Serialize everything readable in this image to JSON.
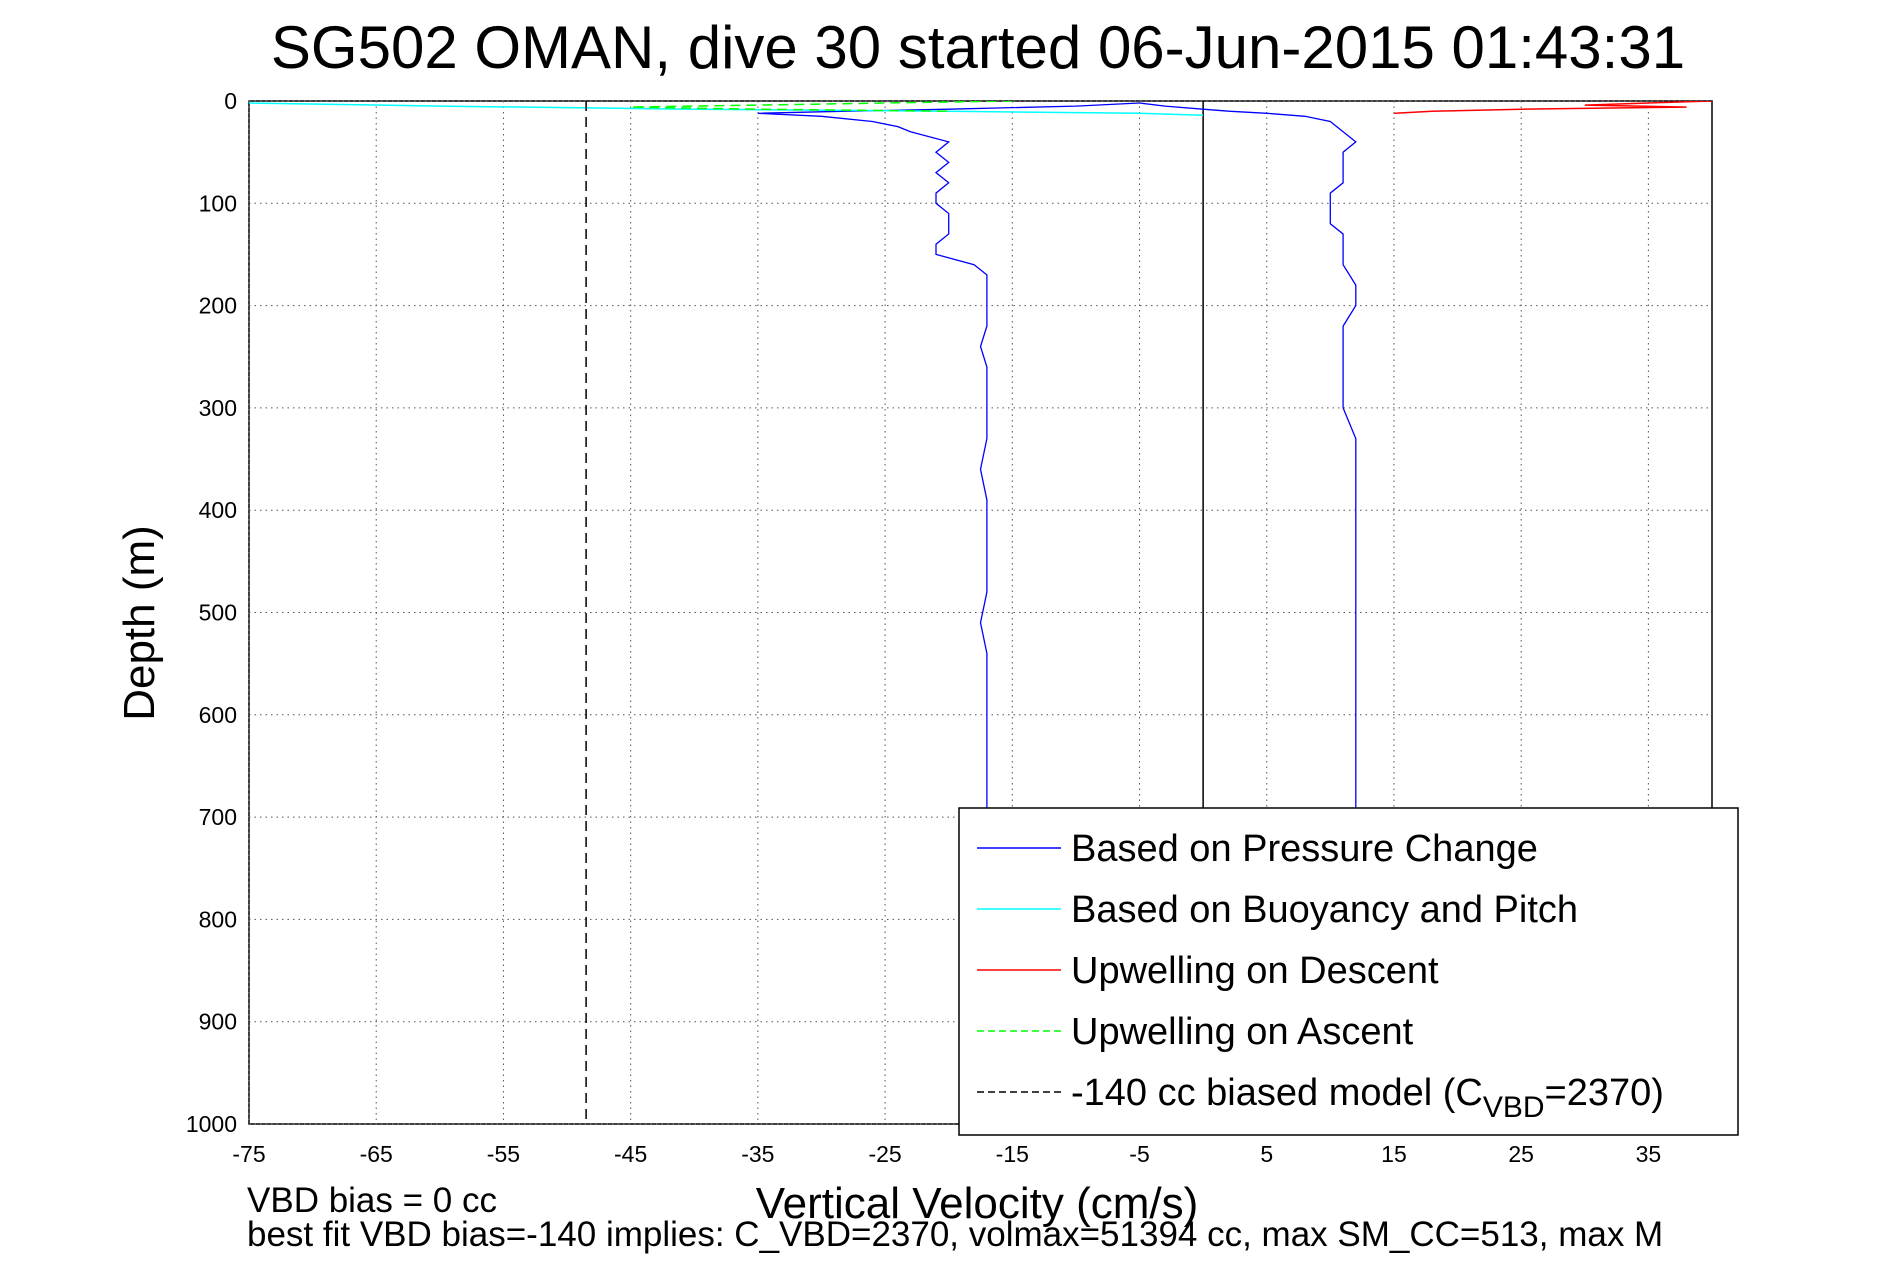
{
  "chart_data": {
    "type": "line",
    "title": "SG502 OMAN, dive 30 started 06-Jun-2015 01:43:31",
    "xlabel": "Vertical Velocity (cm/s)",
    "ylabel": "Depth (m)",
    "xlim": [
      -75,
      40
    ],
    "ylim": [
      0,
      1000
    ],
    "y_reversed": true,
    "xticks": [
      -75,
      -65,
      -55,
      -45,
      -35,
      -25,
      -15,
      -5,
      5,
      15,
      25,
      35
    ],
    "yticks": [
      0,
      100,
      200,
      300,
      400,
      500,
      600,
      700,
      800,
      900,
      1000
    ],
    "grid": true,
    "legend_position": "bottom-right",
    "series": [
      {
        "name": "Based on Pressure Change",
        "color": "#0000ff",
        "style": "solid",
        "segments": [
          {
            "label": "descent",
            "depth": [
              2,
              5,
              8,
              10,
              12,
              15,
              20,
              25,
              30,
              40,
              50,
              60,
              70,
              80,
              90,
              100,
              110,
              120,
              130,
              140,
              150,
              160,
              170,
              180,
              200,
              220,
              240,
              260,
              280,
              300,
              330,
              360,
              390,
              420,
              450,
              480,
              510,
              540,
              570,
              600,
              630,
              660,
              690,
              720,
              750,
              780,
              810,
              840,
              870,
              900,
              930,
              960,
              985
            ],
            "velocity": [
              -5,
              -10,
              -20,
              -28,
              -35,
              -30,
              -26,
              -24,
              -23,
              -20,
              -21,
              -20,
              -21,
              -20,
              -21,
              -21,
              -20,
              -20,
              -20,
              -21,
              -21,
              -18,
              -17,
              -17,
              -17,
              -17,
              -17.5,
              -17,
              -17,
              -17,
              -17,
              -17.5,
              -17,
              -17,
              -17,
              -17,
              -17.5,
              -17,
              -17,
              -17,
              -17,
              -17,
              -17,
              -17,
              -17,
              -17,
              -17,
              -17,
              -17,
              -17,
              -17,
              -17,
              -18
            ]
          },
          {
            "label": "ascent",
            "depth": [
              985,
              960,
              930,
              900,
              870,
              840,
              810,
              780,
              750,
              720,
              690,
              660,
              630,
              600,
              570,
              540,
              510,
              480,
              450,
              420,
              390,
              360,
              330,
              300,
              280,
              260,
              240,
              220,
              200,
              180,
              160,
              150,
              140,
              130,
              120,
              110,
              100,
              90,
              80,
              70,
              60,
              50,
              40,
              30,
              20,
              15,
              12,
              10,
              8,
              5,
              2
            ],
            "velocity": [
              13,
              12,
              12,
              12,
              12,
              12,
              12,
              12,
              12,
              12,
              12,
              12,
              12,
              12,
              12,
              12,
              12,
              12,
              12,
              12,
              12,
              12,
              12,
              11,
              11,
              11,
              11,
              11,
              12,
              12,
              11,
              11,
              11,
              11,
              10,
              10,
              10,
              10,
              11,
              11,
              11,
              11,
              12,
              11,
              10,
              8,
              5,
              2,
              0,
              -3,
              -5
            ]
          }
        ]
      },
      {
        "name": "Based on Buoyancy and Pitch",
        "color": "#00ffff",
        "style": "solid",
        "depth": [
          2,
          5,
          8,
          10,
          12,
          14
        ],
        "velocity": [
          -75,
          -60,
          -40,
          -20,
          -5,
          0
        ]
      },
      {
        "name": "Upwelling on Descent",
        "color": "#ff0000",
        "style": "solid",
        "depth": [
          0,
          2,
          4,
          6,
          8,
          10,
          12
        ],
        "velocity": [
          40,
          35,
          30,
          38,
          25,
          18,
          15
        ]
      },
      {
        "name": "Upwelling on Ascent",
        "color": "#00ff00",
        "style": "dashed",
        "depth": [
          0,
          2,
          4,
          6,
          8,
          10
        ],
        "velocity": [
          -15,
          -25,
          -35,
          -45,
          -35,
          -20
        ]
      },
      {
        "name": "-140 cc biased model",
        "color": "#000000",
        "style": "dashed",
        "depth": [
          0,
          1000
        ],
        "velocity": [
          -48.5,
          -48.5
        ]
      }
    ],
    "reference_line": {
      "x": 0,
      "color": "#000000",
      "style": "solid"
    },
    "legend": [
      {
        "text": "Based on Pressure Change",
        "color": "#0000ff",
        "style": "solid"
      },
      {
        "text": "Based on Buoyancy and Pitch",
        "color": "#00ffff",
        "style": "solid"
      },
      {
        "text": "Upwelling on Descent",
        "color": "#ff0000",
        "style": "solid"
      },
      {
        "text": "Upwelling on Ascent",
        "color": "#00ff00",
        "style": "dashed"
      },
      {
        "text_main": "-140 cc biased model (C",
        "text_sub": "VBD",
        "text_end": "=2370)",
        "color": "#000000",
        "style": "dashed"
      }
    ],
    "footnotes": [
      "VBD bias = 0 cc",
      "best fit VBD bias=-140 implies: C_VBD=2370, volmax=51394 cc, max SM_CC=513, max M"
    ]
  }
}
